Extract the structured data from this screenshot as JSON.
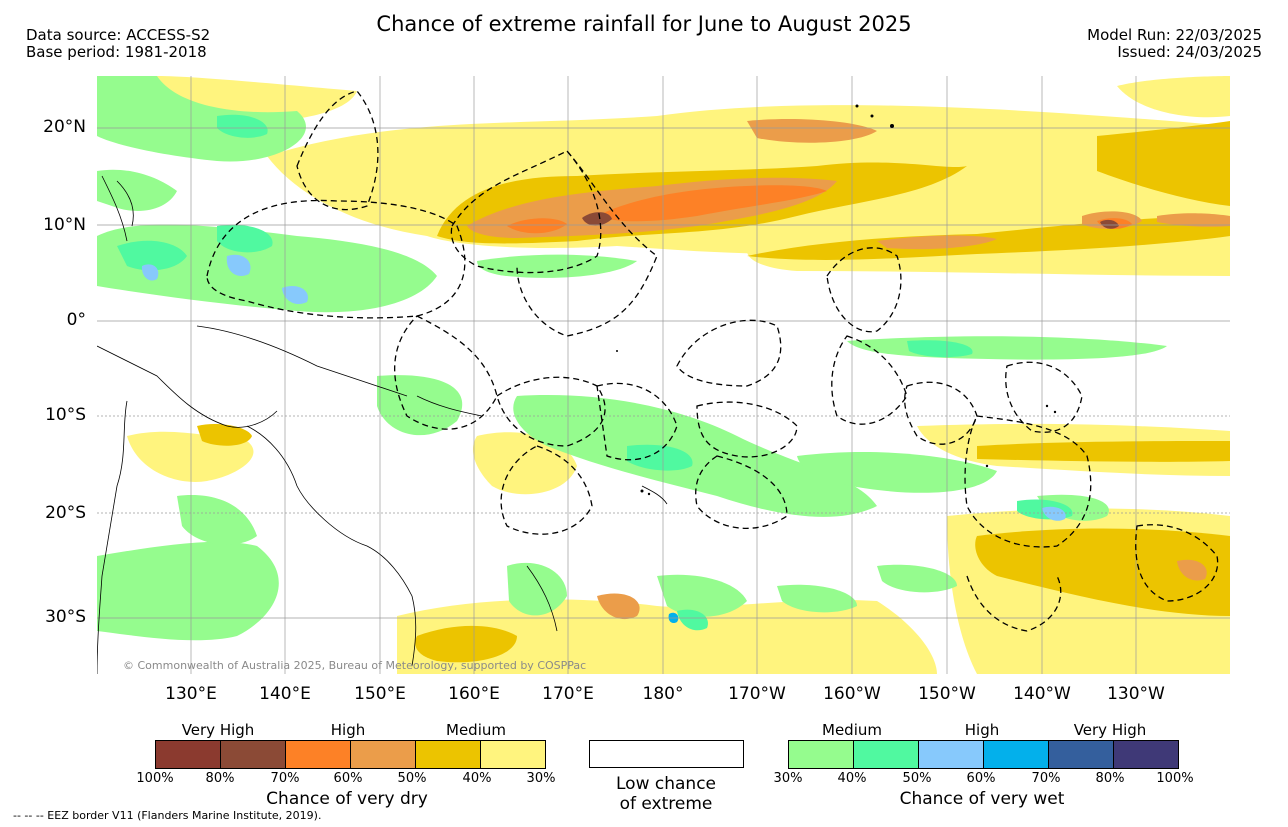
{
  "header": {
    "title": "Chance of extreme rainfall for June to August 2025",
    "data_source": "Data source: ACCESS-S2",
    "base_period": "Base period: 1981-2018",
    "model_run": "Model Run: 22/03/2025",
    "issued": "Issued: 24/03/2025"
  },
  "map": {
    "lat_labels": [
      "20°N",
      "10°N",
      "0°",
      "10°S",
      "20°S",
      "30°S"
    ],
    "lon_labels": [
      "130°E",
      "140°E",
      "150°E",
      "160°E",
      "170°E",
      "180°",
      "170°W",
      "160°W",
      "150°W",
      "140°W",
      "130°W"
    ],
    "copyright": "© Commonwealth of Australia 2025, Bureau of Meteorology, supported by COSPPac",
    "grid_color": "#9a9a9a",
    "coast_color": "#000000",
    "eez_style": "dashed"
  },
  "legend": {
    "dry": {
      "group_labels": [
        "Very High",
        "High",
        "Medium"
      ],
      "colors": [
        "#8b3a2f",
        "#8b4a36",
        "#fd8126",
        "#eb9d4a",
        "#ecc400",
        "#fff47e"
      ],
      "ticks": [
        "100%",
        "80%",
        "70%",
        "60%",
        "50%",
        "40%",
        "30%"
      ],
      "title": "Chance of very dry"
    },
    "low": {
      "color": "#ffffff",
      "line1": "Low chance",
      "line2": "of extreme"
    },
    "wet": {
      "group_labels": [
        "Medium",
        "High",
        "Very High"
      ],
      "colors": [
        "#95fc8e",
        "#50f9a0",
        "#87c9fc",
        "#03b0eb",
        "#345f9d",
        "#3f3977"
      ],
      "ticks": [
        "30%",
        "40%",
        "50%",
        "60%",
        "70%",
        "80%",
        "100%"
      ],
      "title": "Chance of very wet"
    }
  },
  "footer": {
    "eez_note": "--  --  -- EEZ border V11 (Flanders Marine Institute, 2019)."
  }
}
